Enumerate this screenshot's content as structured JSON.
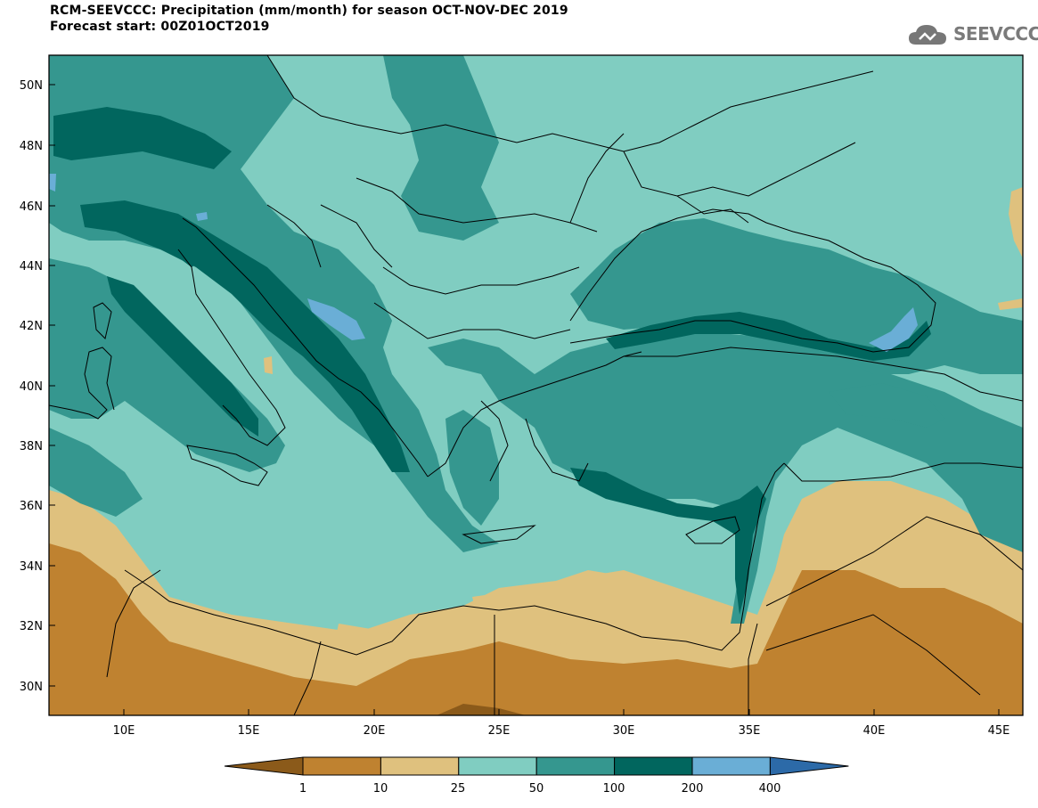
{
  "header": {
    "title": "RCM-SEEVCCC: Precipitation (mm/month) for season OCT-NOV-DEC 2019",
    "subtitle": "Forecast start: 00Z01OCT2019"
  },
  "logo": {
    "text": "SEEVCCC",
    "icon": "cloud-icon"
  },
  "map": {
    "lat_labels": [
      "50N",
      "48N",
      "46N",
      "44N",
      "42N",
      "40N",
      "38N",
      "36N",
      "34N",
      "32N",
      "30N"
    ],
    "lon_labels": [
      "10E",
      "15E",
      "20E",
      "25E",
      "30E",
      "35E",
      "40E",
      "45E"
    ],
    "lat_range": [
      29,
      51
    ],
    "lon_range": [
      7,
      46
    ]
  },
  "colorbar": {
    "levels": [
      "1",
      "10",
      "25",
      "50",
      "100",
      "200",
      "400"
    ],
    "colors": [
      "#8b5a1a",
      "#bf8230",
      "#dfc17e",
      "#80cdc1",
      "#35978f",
      "#01665e",
      "#6aaed6",
      "#2c6aa8"
    ],
    "extend": "both"
  }
}
